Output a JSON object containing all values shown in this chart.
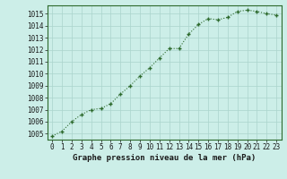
{
  "x": [
    0,
    1,
    2,
    3,
    4,
    5,
    6,
    7,
    8,
    9,
    10,
    11,
    12,
    13,
    14,
    15,
    16,
    17,
    18,
    19,
    20,
    21,
    22,
    23
  ],
  "y": [
    1004.8,
    1005.2,
    1006.0,
    1006.6,
    1007.0,
    1007.1,
    1007.5,
    1008.3,
    1009.0,
    1009.8,
    1010.5,
    1011.3,
    1012.1,
    1012.1,
    1013.3,
    1014.1,
    1014.6,
    1014.5,
    1014.7,
    1015.2,
    1015.3,
    1015.2,
    1015.0,
    1014.9
  ],
  "ylim": [
    1004.5,
    1015.7
  ],
  "xlim": [
    -0.5,
    23.5
  ],
  "yticks": [
    1005,
    1006,
    1007,
    1008,
    1009,
    1010,
    1011,
    1012,
    1013,
    1014,
    1015
  ],
  "xticks": [
    0,
    1,
    2,
    3,
    4,
    5,
    6,
    7,
    8,
    9,
    10,
    11,
    12,
    13,
    14,
    15,
    16,
    17,
    18,
    19,
    20,
    21,
    22,
    23
  ],
  "xlabel": "Graphe pression niveau de la mer (hPa)",
  "line_color": "#2d6a2d",
  "marker_color": "#2d6a2d",
  "bg_color": "#cceee8",
  "grid_color": "#aad4cc",
  "tick_label_color": "#1a1a1a",
  "xlabel_color": "#1a1a1a",
  "xlabel_fontsize": 6.5,
  "tick_fontsize": 5.5,
  "line_width": 0.8,
  "marker_size": 3.0
}
